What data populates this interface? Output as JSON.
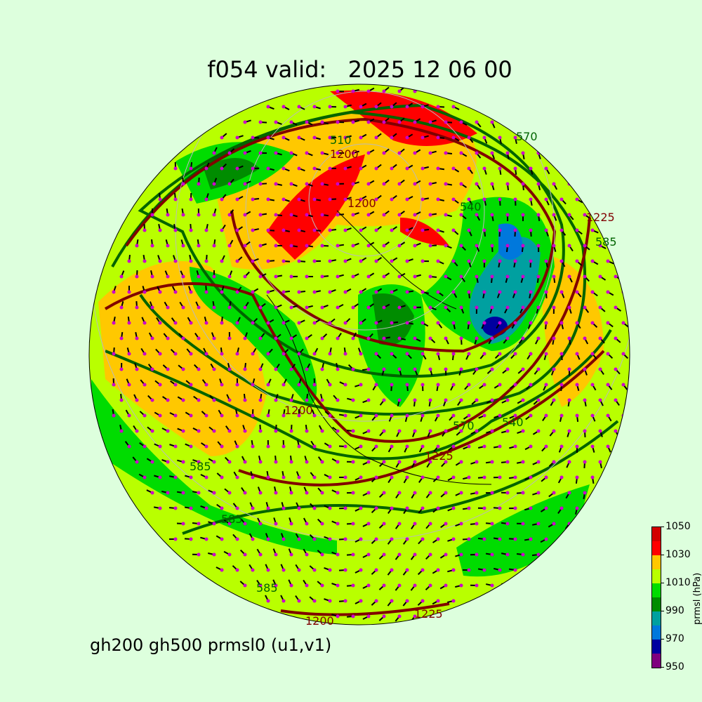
{
  "title": "f054 valid:   2025 12 06 00",
  "subtitle": "gh200 gh500 prmsl0 (u1,v1)",
  "colorbar": {
    "label": "prmsl (hPa)",
    "ticks": [
      "950",
      "970",
      "990",
      "1010",
      "1030",
      "1050"
    ],
    "levels": [
      950,
      960,
      970,
      980,
      990,
      1000,
      1010,
      1020,
      1030,
      1040,
      1050
    ],
    "colors": [
      "#7f007f",
      "#0000a0",
      "#0078dc",
      "#00a0a0",
      "#008c00",
      "#00dc00",
      "#b9ff00",
      "#ffc800",
      "#ff0000",
      "#d20000"
    ]
  },
  "map": {
    "projection": "polar stereographic (orthographic globe)",
    "gh500_color": "#006400",
    "gh200_color": "#800000",
    "wind_barb_color": "#000000",
    "wind_dot_color": "#cc00cc",
    "gh500_labels": [
      "510",
      "540",
      "570",
      "585",
      "585",
      "585",
      "570",
      "585",
      "540"
    ],
    "gh200_labels": [
      "1200",
      "1200",
      "1225",
      "1225",
      "1200",
      "1200",
      "1225"
    ]
  }
}
